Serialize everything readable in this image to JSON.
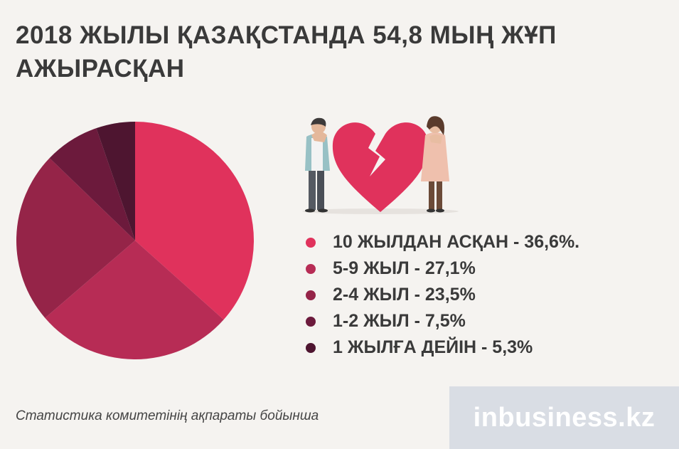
{
  "title": "2018 ЖЫЛЫ ҚАЗАҚСТАНДА 54,8 МЫҢ ЖҰП АЖЫРАСҚАН",
  "source_text": "Статистика комитетінің ақпараты бойынша",
  "brand_text": "inbusiness.kz",
  "legend": [
    {
      "label": "10 ЖЫЛДАН АСҚАН - 36,6%.",
      "color": "#e0325c"
    },
    {
      "label": "5-9 ЖЫЛ - 27,1%",
      "color": "#b72c55"
    },
    {
      "label": "2-4 ЖЫЛ - 23,5%",
      "color": "#952448"
    },
    {
      "label": "1-2 ЖЫЛ - 7,5%",
      "color": "#6c1a3c"
    },
    {
      "label": "1 ЖЫЛҒА ДЕЙІН - 5,3%",
      "color": "#4e1530"
    }
  ],
  "chart_data": {
    "type": "pie",
    "title": "2018 ЖЫЛЫ ҚАЗАҚСТАНДА 54,8 МЫҢ ЖҰП АЖЫРАСҚАН",
    "categories": [
      "10 ЖЫЛДАН АСҚАН",
      "5-9 ЖЫЛ",
      "2-4 ЖЫЛ",
      "1-2 ЖЫЛ",
      "1 ЖЫЛҒА ДЕЙІН"
    ],
    "values": [
      36.6,
      27.1,
      23.5,
      7.5,
      5.3
    ],
    "colors": [
      "#e0325c",
      "#b72c55",
      "#952448",
      "#6c1a3c",
      "#4e1530"
    ],
    "start": "top, clockwise",
    "legend_position": "right"
  },
  "illustration": {
    "icons": [
      "man-figure-icon",
      "broken-heart-icon",
      "woman-figure-icon"
    ],
    "heart_color": "#e0325c"
  }
}
